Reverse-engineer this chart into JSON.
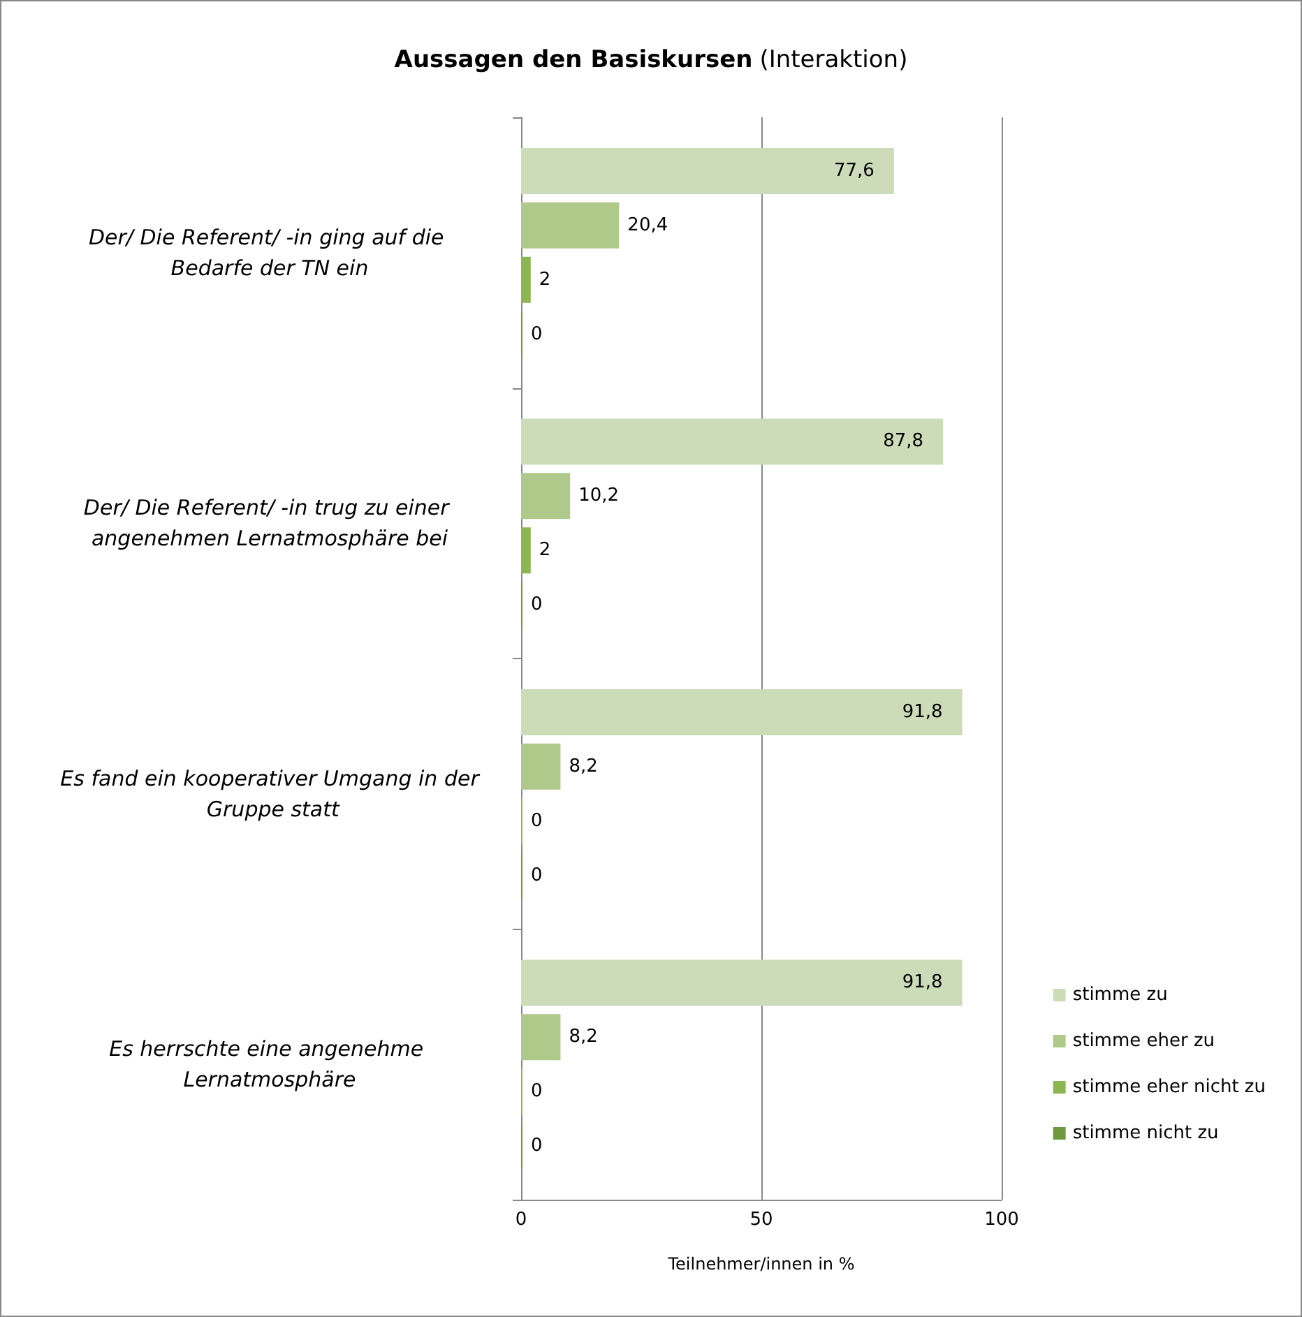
{
  "chart_data": {
    "type": "bar",
    "orientation": "horizontal",
    "title": "Aussagen den Basiskursen",
    "subtitle": "(Interaktion)",
    "xlabel": "Teilnehmer/innen in %",
    "categories": [
      "Der/ Die Referent/ -in ging auf die Bedarfe der TN ein",
      "Der/ Die Referent/ -in trug zu einer angenehmen Lernatmosphäre bei",
      "Es fand ein kooperativer Umgang in der Gruppe statt",
      "Es herrschte eine angenehme Lernatmosphäre"
    ],
    "series": [
      {
        "name": "stimme zu",
        "color": "#ccdcb8",
        "values": [
          77.6,
          87.8,
          91.8,
          91.8
        ],
        "value_labels": [
          "77,6",
          "87,8",
          "91,8",
          "91,8"
        ]
      },
      {
        "name": "stimme eher zu",
        "color": "#afc98a",
        "values": [
          20.4,
          10.2,
          8.2,
          8.2
        ],
        "value_labels": [
          "20,4",
          "10,2",
          "8,2",
          "8,2"
        ]
      },
      {
        "name": "stimme eher nicht zu",
        "color": "#8cb652",
        "values": [
          2,
          2,
          0,
          0
        ],
        "value_labels": [
          "2",
          "2",
          "0",
          "0"
        ]
      },
      {
        "name": "stimme nicht zu",
        "color": "#6f9a3c",
        "values": [
          0,
          0,
          0,
          0
        ],
        "value_labels": [
          "0",
          "0",
          "0",
          "0"
        ]
      }
    ],
    "xlim": [
      0,
      100
    ],
    "xticks": [
      0,
      50,
      100
    ],
    "grid": "x",
    "legend": "right"
  }
}
